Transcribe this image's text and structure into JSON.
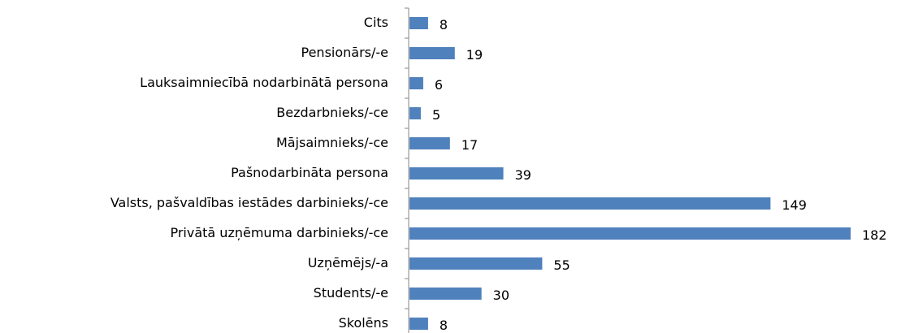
{
  "chart_data": {
    "type": "bar",
    "orientation": "horizontal",
    "categories": [
      "Cits",
      "Pensionārs/-e",
      "Lauksaimniecībā nodarbinātā persona",
      "Bezdarbnieks/-ce",
      "Mājsaimnieks/-ce",
      "Pašnodarbināta persona",
      "Valsts, pašvaldības iestādes darbinieks/-ce",
      "Privātā uzņēmuma darbinieks/-ce",
      "Uzņēmējs/-a",
      "Students/-e",
      "Skolēns"
    ],
    "values": [
      8,
      19,
      6,
      5,
      17,
      39,
      149,
      182,
      55,
      30,
      8
    ],
    "color": "#4f81bd"
  }
}
